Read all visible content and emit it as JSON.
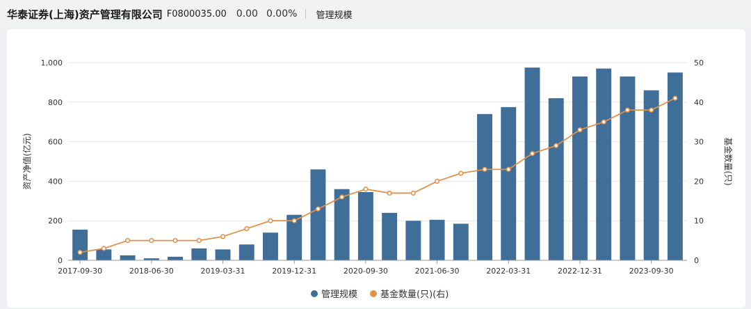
{
  "header": {
    "fund_name": "华泰证券(上海)资产管理有限公司",
    "code": "F0800035.00",
    "value": "0.00",
    "change_pct": "0.00%",
    "tab_label": "管理规模"
  },
  "colors": {
    "bar": "#3f6e99",
    "line": "#e2914a",
    "grid": "#e6e6e6",
    "axis": "#999999"
  },
  "chart_data": {
    "type": "bar",
    "categories": [
      "2017-09-30",
      "2017-12-31",
      "2018-03-31",
      "2018-06-30",
      "2018-09-30",
      "2018-12-31",
      "2019-03-31",
      "2019-06-30",
      "2019-09-30",
      "2019-12-31",
      "2020-03-31",
      "2020-06-30",
      "2020-09-30",
      "2020-12-31",
      "2021-03-31",
      "2021-06-30",
      "2021-09-30",
      "2021-12-31",
      "2022-03-31",
      "2022-06-30",
      "2022-09-30",
      "2022-12-31",
      "2023-03-31",
      "2023-06-30",
      "2023-09-30",
      "2023-12-31"
    ],
    "x_tick_labels": [
      "2017-09-30",
      "2018-06-30",
      "2019-03-31",
      "2019-12-31",
      "2020-09-30",
      "2021-06-30",
      "2022-03-31",
      "2022-12-31",
      "2023-09-30"
    ],
    "x_tick_every": 3,
    "series": [
      {
        "name": "管理规模",
        "type": "bar",
        "axis": "left",
        "values": [
          155,
          55,
          25,
          10,
          18,
          60,
          55,
          80,
          140,
          230,
          460,
          360,
          345,
          240,
          200,
          205,
          185,
          740,
          775,
          975,
          820,
          930,
          970,
          930,
          860,
          950
        ]
      },
      {
        "name": "基金数量(只)(右)",
        "type": "line",
        "axis": "right",
        "values": [
          2,
          3,
          5,
          5,
          5,
          5,
          6,
          8,
          10,
          10,
          13,
          16,
          18,
          17,
          17,
          20,
          22,
          23,
          23,
          27,
          29,
          33,
          35,
          38,
          38,
          41
        ]
      }
    ],
    "ylabel": "资产净值(亿元)",
    "ylabel_right": "基金数量(只)",
    "ylim": [
      0,
      1000
    ],
    "y_ticks": [
      "0",
      "200",
      "400",
      "600",
      "800",
      "1,000"
    ],
    "ylim_right": [
      0,
      50
    ],
    "y_ticks_right": [
      "0",
      "10",
      "20",
      "30",
      "40",
      "50"
    ],
    "grid": true,
    "legend_position": "bottom-center"
  }
}
